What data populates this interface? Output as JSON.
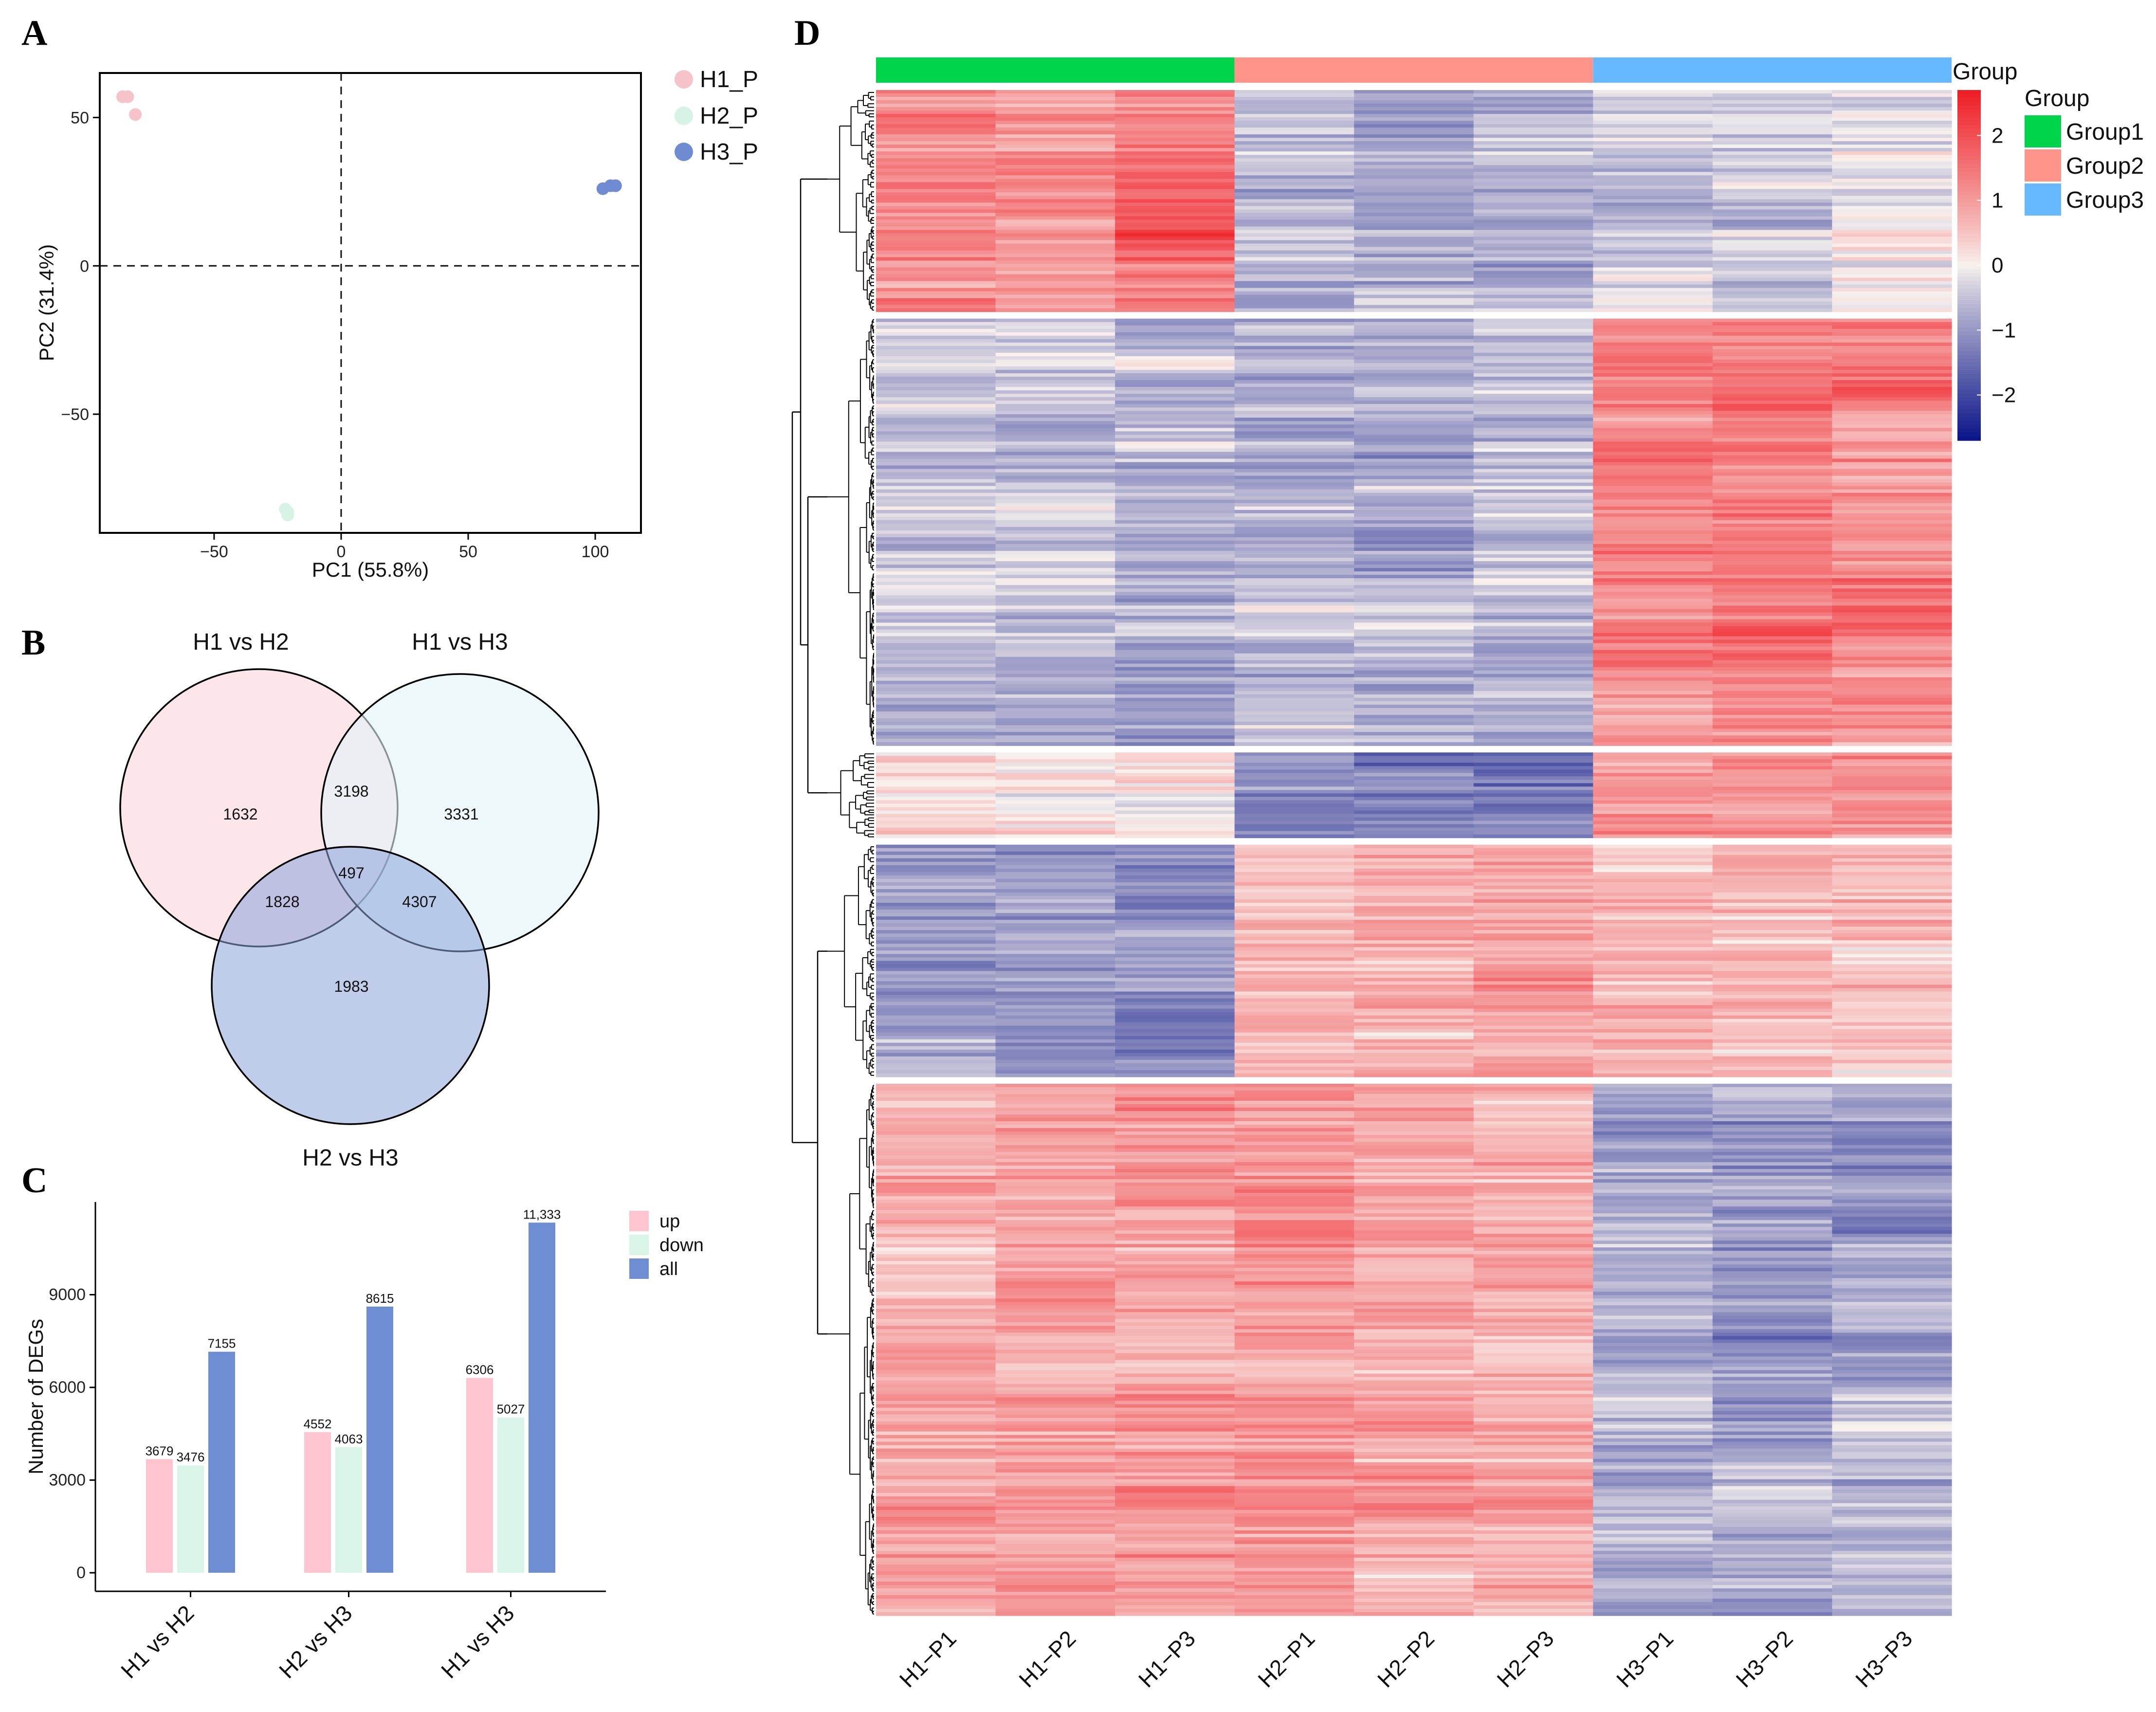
{
  "panels": {
    "a": "A",
    "b": "B",
    "c": "C",
    "d": "D"
  },
  "chart_data": [
    {
      "id": "pca",
      "type": "scatter",
      "xlabel": "PC1 (55.8%)",
      "ylabel": "PC2 (31.4%)",
      "xlim": [
        -95,
        118
      ],
      "ylim": [
        -90,
        65
      ],
      "xticks": [
        {
          "v": -50,
          "t": "−50"
        },
        {
          "v": 0,
          "t": "0"
        },
        {
          "v": 50,
          "t": "50"
        },
        {
          "v": 100,
          "t": "100"
        }
      ],
      "yticks": [
        {
          "v": 50,
          "t": "50"
        },
        {
          "v": 0,
          "t": "0"
        },
        {
          "v": -50,
          "t": "−50"
        }
      ],
      "reference_lines": {
        "x": 0,
        "y": 0
      },
      "series": [
        {
          "name": "H1_P",
          "color": "#f6c3cb",
          "points": [
            [
              -86,
              57
            ],
            [
              -84,
              57
            ],
            [
              -81,
              51
            ]
          ]
        },
        {
          "name": "H2_P",
          "color": "#d6f3e6",
          "points": [
            [
              -22,
              -82
            ],
            [
              -21,
              -83
            ],
            [
              -21,
              -84
            ]
          ]
        },
        {
          "name": "H3_P",
          "color": "#6f8bd1",
          "points": [
            [
              103,
              26
            ],
            [
              106,
              27
            ],
            [
              108,
              27
            ]
          ]
        }
      ]
    },
    {
      "id": "venn",
      "type": "venn",
      "sets": [
        "H1 vs H2",
        "H1 vs H3",
        "H2 vs H3"
      ],
      "colors": [
        "#fde2e6",
        "#e3f3f9",
        "#b6c7e8"
      ],
      "regions": {
        "only_H1vsH2": "1632",
        "H1vsH2_H1vsH3": "3198",
        "only_H1vsH3": "3331",
        "all_three": "497",
        "H1vsH2_H2vsH3": "1828",
        "H1vsH3_H2vsH3": "4307",
        "only_H2vsH3": "1983"
      }
    },
    {
      "id": "degs",
      "type": "bar",
      "ylabel": "Number of DEGs",
      "ylim": [
        -600,
        12000
      ],
      "yticks": [
        0,
        3000,
        6000,
        9000
      ],
      "categories": [
        "H1 vs H2",
        "H2 vs H3",
        "H1 vs H3"
      ],
      "series": [
        {
          "name": "up",
          "color": "#fec5d1",
          "values": [
            3679,
            4552,
            6306
          ],
          "labels": [
            "3679",
            "4552",
            "6306"
          ]
        },
        {
          "name": "down",
          "color": "#d8f5e7",
          "values": [
            3476,
            4063,
            5027
          ],
          "labels": [
            "3476",
            "4063",
            "5027"
          ]
        },
        {
          "name": "all",
          "color": "#6f8dd3",
          "values": [
            7155,
            8615,
            11333
          ],
          "labels": [
            "7155",
            "8615",
            "11,333"
          ]
        }
      ]
    },
    {
      "id": "heatmap",
      "type": "heatmap",
      "columns": [
        "H1−P1",
        "H1−P2",
        "H1−P3",
        "H2−P1",
        "H2−P2",
        "H2−P3",
        "H3−P1",
        "H3−P2",
        "H3−P3"
      ],
      "groups": [
        {
          "name": "Group1",
          "color": "#00d44a",
          "columns": [
            0,
            1,
            2
          ]
        },
        {
          "name": "Group2",
          "color": "#ff948a",
          "columns": [
            3,
            4,
            5
          ]
        },
        {
          "name": "Group3",
          "color": "#66b8ff",
          "columns": [
            6,
            7,
            8
          ]
        }
      ],
      "annotation_label": "Group",
      "legend_title": "Group",
      "color_scale": {
        "min": -2.7,
        "max": 2.7,
        "low": "#0a1488",
        "mid": "#f8f2ee",
        "high": "#ef1c24",
        "ticks": [
          {
            "v": 2,
            "t": "2"
          },
          {
            "v": 1,
            "t": "1"
          },
          {
            "v": 0,
            "t": "0"
          },
          {
            "v": -1,
            "t": "−1"
          },
          {
            "v": -2,
            "t": "−2"
          }
        ]
      },
      "clusters": [
        {
          "weight": 0.148,
          "means": [
            1.2,
            1.1,
            1.6,
            -0.7,
            -0.8,
            -0.7,
            -0.3,
            -0.3,
            -0.2
          ]
        },
        {
          "weight": 0.285,
          "means": [
            -0.6,
            -0.6,
            -0.7,
            -0.6,
            -0.7,
            -0.6,
            1.2,
            1.4,
            1.3
          ]
        },
        {
          "weight": 0.057,
          "means": [
            0.3,
            0.2,
            0.2,
            -1.2,
            -1.3,
            -1.3,
            1.1,
            1.2,
            1.1
          ]
        },
        {
          "weight": 0.155,
          "means": [
            -1.0,
            -1.1,
            -1.2,
            0.7,
            0.8,
            0.8,
            0.6,
            0.7,
            0.4
          ]
        },
        {
          "weight": 0.355,
          "means": [
            0.8,
            0.9,
            0.9,
            1.1,
            0.8,
            0.8,
            -0.8,
            -0.9,
            -0.8
          ]
        }
      ]
    }
  ]
}
